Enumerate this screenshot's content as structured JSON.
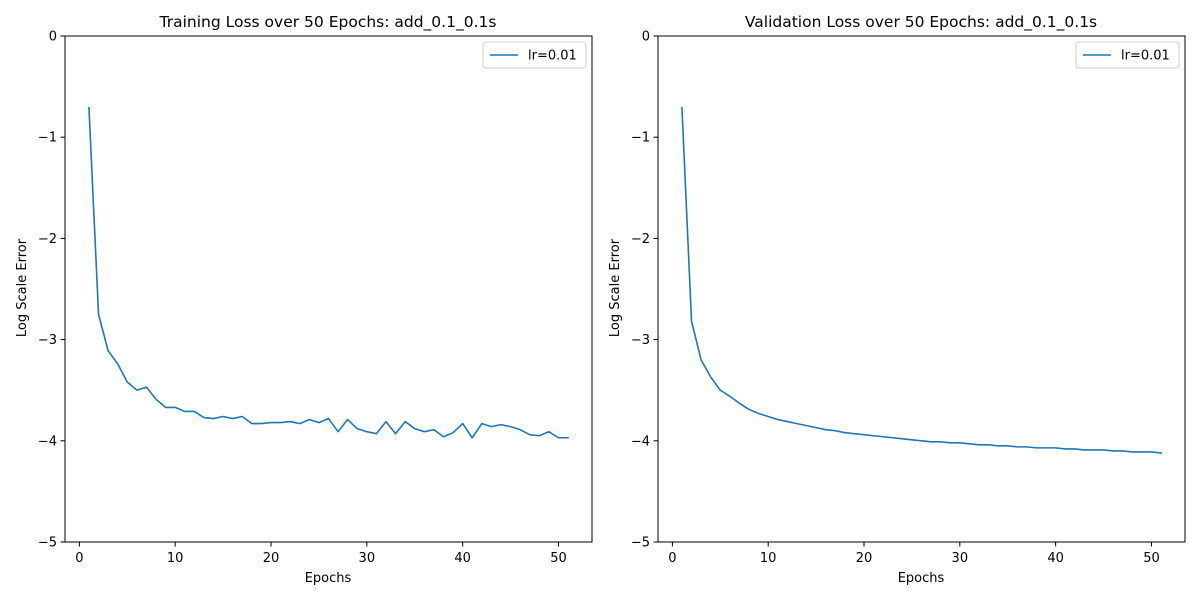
{
  "colors": {
    "series": "#1f77b4",
    "axes": "#000000",
    "background": "#ffffff",
    "legend_border": "#cccccc"
  },
  "chart_data": [
    {
      "type": "line",
      "title": "Training Loss over 50 Epochs: add_0.1_0.1s",
      "xlabel": "Epochs",
      "ylabel": "Log Scale Error",
      "xlim": [
        -1.5,
        53.5
      ],
      "ylim": [
        -5,
        0
      ],
      "xticks": [
        0,
        10,
        20,
        30,
        40,
        50
      ],
      "yticks": [
        0,
        -1,
        -2,
        -3,
        -4,
        -5
      ],
      "xtick_labels": [
        "0",
        "10",
        "20",
        "30",
        "40",
        "50"
      ],
      "ytick_labels": [
        "0",
        "−1",
        "−2",
        "−3",
        "−4",
        "−5"
      ],
      "grid": false,
      "legend_position": "top-right",
      "series": [
        {
          "name": "lr=0.01",
          "color": "#1f77b4",
          "x": [
            1,
            2,
            3,
            4,
            5,
            6,
            7,
            8,
            9,
            10,
            11,
            12,
            13,
            14,
            15,
            16,
            17,
            18,
            19,
            20,
            21,
            22,
            23,
            24,
            25,
            26,
            27,
            28,
            29,
            30,
            31,
            32,
            33,
            34,
            35,
            36,
            37,
            38,
            39,
            40,
            41,
            42,
            43,
            44,
            45,
            46,
            47,
            48,
            49,
            50,
            51
          ],
          "y": [
            -0.71,
            -2.75,
            -3.11,
            -3.24,
            -3.42,
            -3.5,
            -3.47,
            -3.59,
            -3.67,
            -3.67,
            -3.71,
            -3.71,
            -3.77,
            -3.78,
            -3.76,
            -3.78,
            -3.76,
            -3.83,
            -3.83,
            -3.82,
            -3.82,
            -3.81,
            -3.83,
            -3.79,
            -3.82,
            -3.78,
            -3.91,
            -3.79,
            -3.88,
            -3.91,
            -3.93,
            -3.81,
            -3.93,
            -3.81,
            -3.88,
            -3.91,
            -3.89,
            -3.96,
            -3.92,
            -3.83,
            -3.97,
            -3.83,
            -3.86,
            -3.84,
            -3.86,
            -3.89,
            -3.94,
            -3.95,
            -3.91,
            -3.97,
            -3.97
          ]
        }
      ]
    },
    {
      "type": "line",
      "title": "Validation Loss over 50 Epochs: add_0.1_0.1s",
      "xlabel": "Epochs",
      "ylabel": "Log Scale Error",
      "xlim": [
        -1.5,
        53.5
      ],
      "ylim": [
        -5,
        0
      ],
      "xticks": [
        0,
        10,
        20,
        30,
        40,
        50
      ],
      "yticks": [
        0,
        -1,
        -2,
        -3,
        -4,
        -5
      ],
      "xtick_labels": [
        "0",
        "10",
        "20",
        "30",
        "40",
        "50"
      ],
      "ytick_labels": [
        "0",
        "−1",
        "−2",
        "−3",
        "−4",
        "−5"
      ],
      "grid": false,
      "legend_position": "top-right",
      "series": [
        {
          "name": "lr=0.01",
          "color": "#1f77b4",
          "x": [
            1,
            2,
            3,
            4,
            5,
            6,
            7,
            8,
            9,
            10,
            11,
            12,
            13,
            14,
            15,
            16,
            17,
            18,
            19,
            20,
            21,
            22,
            23,
            24,
            25,
            26,
            27,
            28,
            29,
            30,
            31,
            32,
            33,
            34,
            35,
            36,
            37,
            38,
            39,
            40,
            41,
            42,
            43,
            44,
            45,
            46,
            47,
            48,
            49,
            50,
            51
          ],
          "y": [
            -0.71,
            -2.82,
            -3.2,
            -3.37,
            -3.5,
            -3.56,
            -3.63,
            -3.69,
            -3.73,
            -3.76,
            -3.79,
            -3.81,
            -3.83,
            -3.85,
            -3.87,
            -3.89,
            -3.9,
            -3.92,
            -3.93,
            -3.94,
            -3.95,
            -3.96,
            -3.97,
            -3.98,
            -3.99,
            -4.0,
            -4.01,
            -4.01,
            -4.02,
            -4.02,
            -4.03,
            -4.04,
            -4.04,
            -4.05,
            -4.05,
            -4.06,
            -4.06,
            -4.07,
            -4.07,
            -4.07,
            -4.08,
            -4.08,
            -4.09,
            -4.09,
            -4.09,
            -4.1,
            -4.1,
            -4.11,
            -4.11,
            -4.11,
            -4.12
          ]
        }
      ]
    }
  ]
}
